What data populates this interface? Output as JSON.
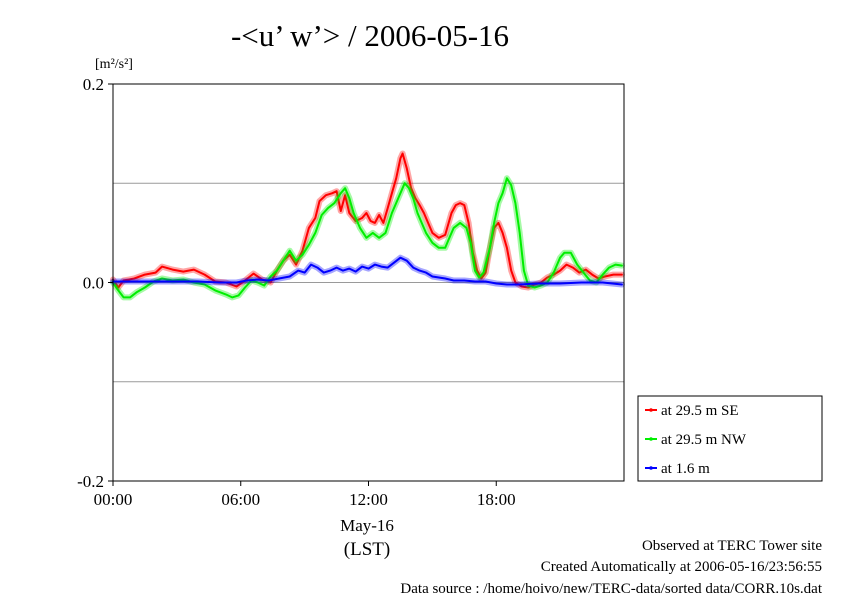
{
  "chart_data": {
    "type": "line",
    "title": "-<u’ w’> / 2006-05-16",
    "ylabel": "[m²/s²]",
    "ylim": [
      -0.2,
      0.2
    ],
    "yticks": [
      {
        "value": 0.2,
        "label": "0.2"
      },
      {
        "value": 0.0,
        "label": "0.0"
      },
      {
        "value": -0.2,
        "label": "-0.2"
      }
    ],
    "ygrid": [
      0.1,
      0.0,
      -0.1
    ],
    "xlim": [
      0,
      24
    ],
    "xticks": [
      {
        "value": 0,
        "label": "00:00"
      },
      {
        "value": 6,
        "label": "06:00"
      },
      {
        "value": 12,
        "label": "12:00"
      },
      {
        "value": 18,
        "label": "18:00"
      }
    ],
    "xdate": "May-16",
    "xunit": "(LST)",
    "legend_position": "right-bottom",
    "series": [
      {
        "name": "at 29.5 m SE",
        "color": "#ff0000",
        "points": [
          [
            0.0,
            0.003
          ],
          [
            0.25,
            -0.005
          ],
          [
            0.5,
            0.002
          ],
          [
            1.0,
            0.004
          ],
          [
            1.5,
            0.008
          ],
          [
            2.0,
            0.01
          ],
          [
            2.3,
            0.016
          ],
          [
            2.8,
            0.013
          ],
          [
            3.3,
            0.011
          ],
          [
            3.8,
            0.013
          ],
          [
            4.3,
            0.008
          ],
          [
            4.8,
            0.001
          ],
          [
            5.3,
            0.0
          ],
          [
            5.8,
            -0.004
          ],
          [
            6.2,
            0.002
          ],
          [
            6.6,
            0.009
          ],
          [
            7.0,
            0.003
          ],
          [
            7.4,
            0.0
          ],
          [
            7.7,
            0.012
          ],
          [
            8.0,
            0.022
          ],
          [
            8.3,
            0.028
          ],
          [
            8.6,
            0.018
          ],
          [
            8.9,
            0.032
          ],
          [
            9.2,
            0.055
          ],
          [
            9.5,
            0.065
          ],
          [
            9.7,
            0.082
          ],
          [
            10.0,
            0.088
          ],
          [
            10.3,
            0.09
          ],
          [
            10.5,
            0.092
          ],
          [
            10.7,
            0.072
          ],
          [
            10.9,
            0.088
          ],
          [
            11.1,
            0.07
          ],
          [
            11.4,
            0.062
          ],
          [
            11.7,
            0.065
          ],
          [
            11.9,
            0.07
          ],
          [
            12.1,
            0.062
          ],
          [
            12.3,
            0.06
          ],
          [
            12.5,
            0.068
          ],
          [
            12.7,
            0.06
          ],
          [
            12.9,
            0.075
          ],
          [
            13.1,
            0.09
          ],
          [
            13.3,
            0.105
          ],
          [
            13.5,
            0.125
          ],
          [
            13.6,
            0.13
          ],
          [
            13.8,
            0.115
          ],
          [
            14.0,
            0.095
          ],
          [
            14.2,
            0.085
          ],
          [
            14.4,
            0.078
          ],
          [
            14.6,
            0.07
          ],
          [
            14.8,
            0.06
          ],
          [
            15.0,
            0.05
          ],
          [
            15.3,
            0.045
          ],
          [
            15.6,
            0.048
          ],
          [
            15.9,
            0.07
          ],
          [
            16.1,
            0.078
          ],
          [
            16.3,
            0.08
          ],
          [
            16.5,
            0.078
          ],
          [
            16.7,
            0.06
          ],
          [
            16.9,
            0.03
          ],
          [
            17.1,
            0.012
          ],
          [
            17.3,
            0.004
          ],
          [
            17.5,
            0.01
          ],
          [
            17.7,
            0.035
          ],
          [
            17.9,
            0.055
          ],
          [
            18.1,
            0.06
          ],
          [
            18.3,
            0.05
          ],
          [
            18.5,
            0.035
          ],
          [
            18.7,
            0.012
          ],
          [
            18.9,
            0.0
          ],
          [
            19.2,
            -0.004
          ],
          [
            19.5,
            -0.005
          ],
          [
            19.8,
            -0.002
          ],
          [
            20.1,
            0.0
          ],
          [
            20.4,
            0.005
          ],
          [
            20.7,
            0.008
          ],
          [
            21.0,
            0.012
          ],
          [
            21.3,
            0.018
          ],
          [
            21.6,
            0.015
          ],
          [
            21.9,
            0.01
          ],
          [
            22.2,
            0.013
          ],
          [
            22.5,
            0.008
          ],
          [
            22.8,
            0.004
          ],
          [
            23.1,
            0.006
          ],
          [
            23.5,
            0.008
          ],
          [
            23.9,
            0.008
          ]
        ]
      },
      {
        "name": "at 29.5 m NW",
        "color": "#00ee00",
        "points": [
          [
            0.0,
            0.0
          ],
          [
            0.25,
            -0.008
          ],
          [
            0.5,
            -0.015
          ],
          [
            0.8,
            -0.015
          ],
          [
            1.1,
            -0.01
          ],
          [
            1.5,
            -0.005
          ],
          [
            1.9,
            0.001
          ],
          [
            2.3,
            0.004
          ],
          [
            2.8,
            0.002
          ],
          [
            3.3,
            0.003
          ],
          [
            3.8,
            0.0
          ],
          [
            4.3,
            -0.002
          ],
          [
            4.8,
            -0.008
          ],
          [
            5.3,
            -0.012
          ],
          [
            5.6,
            -0.015
          ],
          [
            5.9,
            -0.013
          ],
          [
            6.2,
            -0.005
          ],
          [
            6.5,
            0.002
          ],
          [
            6.8,
            0.0
          ],
          [
            7.1,
            -0.003
          ],
          [
            7.4,
            0.006
          ],
          [
            7.7,
            0.012
          ],
          [
            8.0,
            0.022
          ],
          [
            8.3,
            0.032
          ],
          [
            8.6,
            0.022
          ],
          [
            8.9,
            0.028
          ],
          [
            9.2,
            0.038
          ],
          [
            9.5,
            0.05
          ],
          [
            9.8,
            0.068
          ],
          [
            10.1,
            0.075
          ],
          [
            10.4,
            0.08
          ],
          [
            10.7,
            0.09
          ],
          [
            10.9,
            0.095
          ],
          [
            11.1,
            0.085
          ],
          [
            11.3,
            0.07
          ],
          [
            11.6,
            0.055
          ],
          [
            11.9,
            0.045
          ],
          [
            12.2,
            0.05
          ],
          [
            12.5,
            0.045
          ],
          [
            12.8,
            0.05
          ],
          [
            13.1,
            0.07
          ],
          [
            13.4,
            0.085
          ],
          [
            13.7,
            0.1
          ],
          [
            13.9,
            0.095
          ],
          [
            14.1,
            0.085
          ],
          [
            14.3,
            0.07
          ],
          [
            14.5,
            0.06
          ],
          [
            14.7,
            0.05
          ],
          [
            15.0,
            0.04
          ],
          [
            15.3,
            0.035
          ],
          [
            15.6,
            0.035
          ],
          [
            15.8,
            0.045
          ],
          [
            16.0,
            0.055
          ],
          [
            16.3,
            0.06
          ],
          [
            16.6,
            0.055
          ],
          [
            16.8,
            0.04
          ],
          [
            17.0,
            0.012
          ],
          [
            17.2,
            0.005
          ],
          [
            17.4,
            0.01
          ],
          [
            17.7,
            0.035
          ],
          [
            17.9,
            0.06
          ],
          [
            18.1,
            0.08
          ],
          [
            18.3,
            0.09
          ],
          [
            18.5,
            0.105
          ],
          [
            18.7,
            0.098
          ],
          [
            18.9,
            0.08
          ],
          [
            19.1,
            0.05
          ],
          [
            19.3,
            0.012
          ],
          [
            19.5,
            -0.003
          ],
          [
            19.8,
            -0.005
          ],
          [
            20.1,
            -0.003
          ],
          [
            20.4,
            0.0
          ],
          [
            20.7,
            0.01
          ],
          [
            21.0,
            0.025
          ],
          [
            21.2,
            0.03
          ],
          [
            21.5,
            0.03
          ],
          [
            21.8,
            0.018
          ],
          [
            22.1,
            0.01
          ],
          [
            22.4,
            0.002
          ],
          [
            22.7,
            0.0
          ],
          [
            23.0,
            0.008
          ],
          [
            23.3,
            0.015
          ],
          [
            23.6,
            0.018
          ],
          [
            23.9,
            0.017
          ]
        ]
      },
      {
        "name": "at 1.6 m",
        "color": "#0000ff",
        "points": [
          [
            0.0,
            0.001
          ],
          [
            1.0,
            0.001
          ],
          [
            2.0,
            0.001
          ],
          [
            3.0,
            0.001
          ],
          [
            4.0,
            0.001
          ],
          [
            5.0,
            0.0
          ],
          [
            5.8,
            0.0
          ],
          [
            6.3,
            0.002
          ],
          [
            6.8,
            0.003
          ],
          [
            7.3,
            0.002
          ],
          [
            7.8,
            0.004
          ],
          [
            8.3,
            0.006
          ],
          [
            8.7,
            0.012
          ],
          [
            9.0,
            0.01
          ],
          [
            9.3,
            0.018
          ],
          [
            9.6,
            0.015
          ],
          [
            9.9,
            0.01
          ],
          [
            10.2,
            0.012
          ],
          [
            10.5,
            0.015
          ],
          [
            10.8,
            0.012
          ],
          [
            11.1,
            0.014
          ],
          [
            11.4,
            0.011
          ],
          [
            11.7,
            0.016
          ],
          [
            12.0,
            0.014
          ],
          [
            12.3,
            0.018
          ],
          [
            12.6,
            0.016
          ],
          [
            12.9,
            0.015
          ],
          [
            13.2,
            0.02
          ],
          [
            13.5,
            0.025
          ],
          [
            13.8,
            0.022
          ],
          [
            14.1,
            0.015
          ],
          [
            14.4,
            0.012
          ],
          [
            14.7,
            0.01
          ],
          [
            15.0,
            0.006
          ],
          [
            15.3,
            0.005
          ],
          [
            15.6,
            0.004
          ],
          [
            16.0,
            0.002
          ],
          [
            16.5,
            0.002
          ],
          [
            17.0,
            0.001
          ],
          [
            17.5,
            0.001
          ],
          [
            18.0,
            -0.001
          ],
          [
            18.5,
            -0.002
          ],
          [
            19.0,
            -0.002
          ],
          [
            20.0,
            -0.001
          ],
          [
            21.0,
            -0.001
          ],
          [
            22.0,
            0.0
          ],
          [
            23.0,
            0.0
          ],
          [
            23.9,
            -0.002
          ]
        ]
      }
    ]
  },
  "footer": {
    "line1": "Observed at TERC Tower site",
    "line2": "Created Automatically at 2006-05-16/23:56:55",
    "line3": "Data source : /home/hoivo/new/TERC-data/sorted  data/CORR.10s.dat"
  }
}
